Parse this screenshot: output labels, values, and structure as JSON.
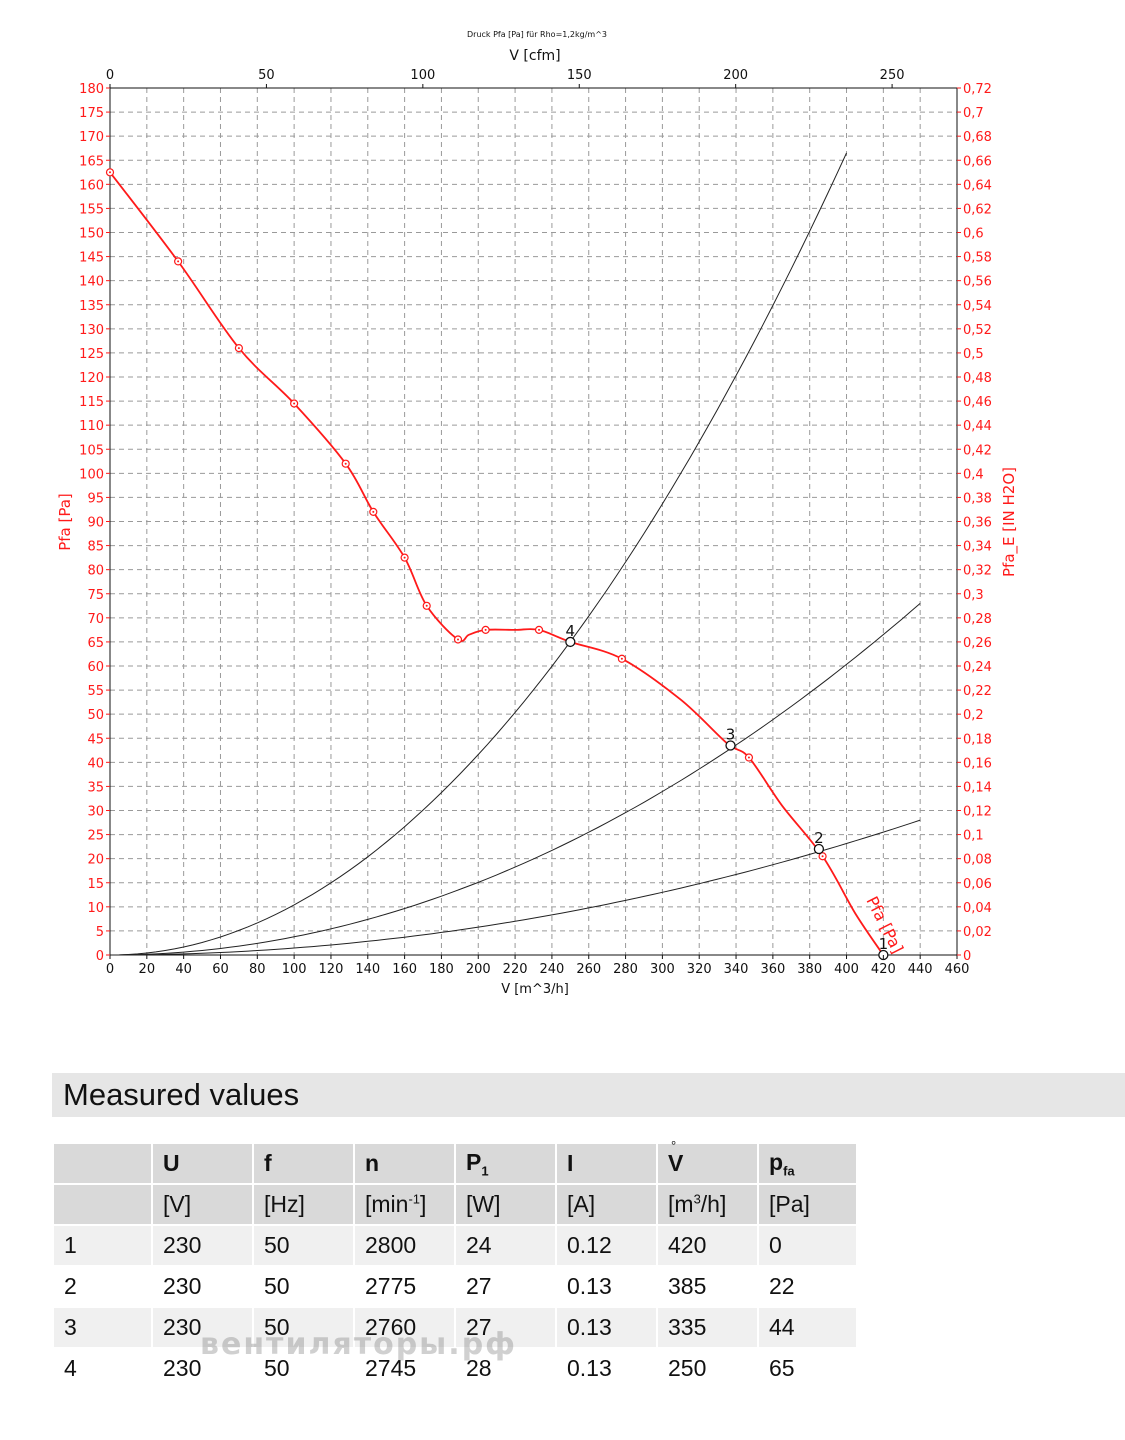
{
  "chart_data": {
    "type": "line",
    "title": "Druck Pfa [Pa] für Rho=1,2kg/m^3",
    "xlabel": "V [m^3/h]",
    "x2label": "V [cfm]",
    "ylabel": "Pfa [Pa]",
    "y2label": "Pfa_E [IN H2O]",
    "xlim": [
      0,
      460
    ],
    "ylim": [
      0,
      180
    ],
    "x_ticks": [
      "0",
      "20",
      "40",
      "60",
      "80",
      "100",
      "120",
      "140",
      "160",
      "180",
      "200",
      "220",
      "240",
      "260",
      "280",
      "300",
      "320",
      "340",
      "360",
      "380",
      "400",
      "420",
      "440",
      "460"
    ],
    "y_ticks": [
      "0",
      "5",
      "10",
      "15",
      "20",
      "25",
      "30",
      "35",
      "40",
      "45",
      "50",
      "55",
      "60",
      "65",
      "70",
      "75",
      "80",
      "85",
      "90",
      "95",
      "100",
      "105",
      "110",
      "115",
      "120",
      "125",
      "130",
      "135",
      "140",
      "145",
      "150",
      "155",
      "160",
      "165",
      "170",
      "175",
      "180"
    ],
    "x2_ticks": [
      "0",
      "50",
      "100",
      "150",
      "200",
      "250"
    ],
    "y2_ticks": [
      "0",
      "0,02",
      "0,04",
      "0,06",
      "0,08",
      "0,1",
      "0,12",
      "0,14",
      "0,16",
      "0,18",
      "0,2",
      "0,22",
      "0,24",
      "0,26",
      "0,28",
      "0,3",
      "0,32",
      "0,34",
      "0,36",
      "0,38",
      "0,4",
      "0,42",
      "0,44",
      "0,46",
      "0,48",
      "0,5",
      "0,52",
      "0,54",
      "0,56",
      "0,58",
      "0,6",
      "0,62",
      "0,64",
      "0,66",
      "0,68",
      "0,7",
      "0,72"
    ],
    "fan_curve": {
      "name": "Pfa [Pa]",
      "color": "#ff1a1a",
      "x": [
        0,
        37,
        70,
        100,
        128,
        143,
        160,
        172,
        189,
        195,
        204,
        220,
        233,
        250,
        278,
        310,
        335,
        347,
        365,
        387,
        405,
        420
      ],
      "y": [
        162.5,
        144,
        126,
        114.5,
        102,
        92,
        82.5,
        72.5,
        65.5,
        66.5,
        67.5,
        67.5,
        67.5,
        65,
        61.5,
        53,
        44,
        41,
        31,
        20.5,
        8.5,
        0
      ]
    },
    "markers": {
      "x": [
        0,
        37,
        70,
        100,
        128,
        143,
        160,
        172,
        189,
        204,
        233,
        278,
        347,
        387
      ],
      "y": [
        162.5,
        144,
        126,
        114.5,
        102,
        92,
        82.5,
        72.5,
        65.5,
        67.5,
        67.5,
        61.5,
        41,
        20.5
      ]
    },
    "system_curves": [
      {
        "x_end": 400,
        "y_end": 166.5
      },
      {
        "x_end": 440,
        "y_end": 73
      },
      {
        "x_end": 440,
        "y_end": 28
      }
    ],
    "operating_points": [
      {
        "label": "1",
        "x": 420,
        "y": 0
      },
      {
        "label": "2",
        "x": 385,
        "y": 22
      },
      {
        "label": "3",
        "x": 337,
        "y": 43.5
      },
      {
        "label": "4",
        "x": 250,
        "y": 65
      }
    ]
  },
  "section_title": "Measured values",
  "table": {
    "headers": [
      "",
      "U",
      "f",
      "n",
      "P",
      "I",
      "V",
      "p"
    ],
    "header_subs": [
      "",
      "",
      "",
      "",
      "1",
      "",
      "",
      "fa"
    ],
    "units": [
      "",
      "[V]",
      "[Hz]",
      "[min",
      "[W]",
      "[A]",
      "[m",
      "[Pa]"
    ],
    "unit_sups": [
      "",
      "",
      "",
      "-1",
      "",
      "",
      "3",
      ""
    ],
    "unit_tails": [
      "",
      "",
      "",
      "]",
      "",
      "",
      "/h]",
      ""
    ],
    "rows": [
      [
        "1",
        "230",
        "50",
        "2800",
        "24",
        "0.12",
        "420",
        "0"
      ],
      [
        "2",
        "230",
        "50",
        "2775",
        "27",
        "0.13",
        "385",
        "22"
      ],
      [
        "3",
        "230",
        "50",
        "2760",
        "27",
        "0.13",
        "335",
        "44"
      ],
      [
        "4",
        "230",
        "50",
        "2745",
        "28",
        "0.13",
        "250",
        "65"
      ]
    ]
  },
  "watermark": "вентиляторы.рф"
}
